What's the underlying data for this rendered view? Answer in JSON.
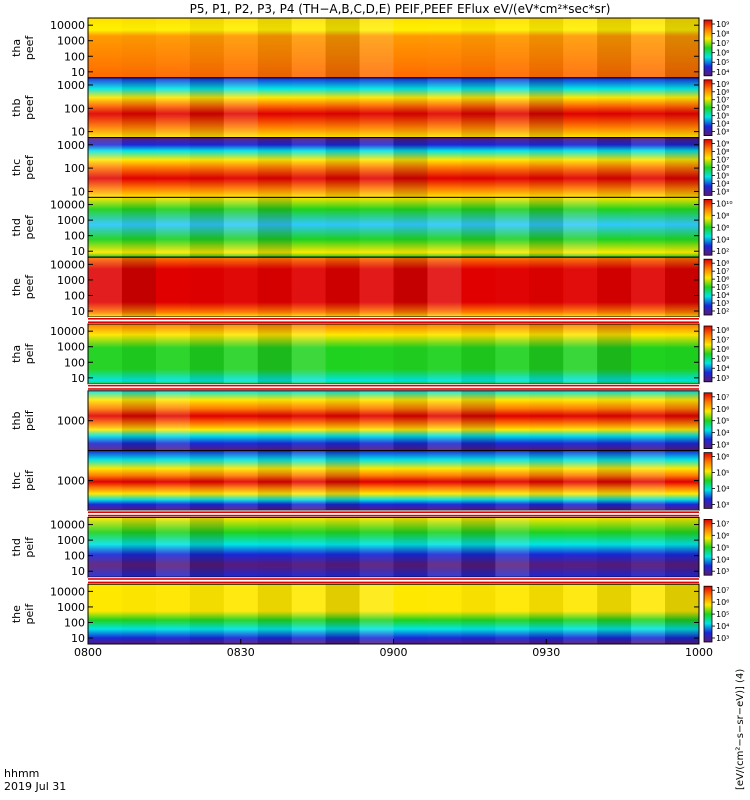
{
  "title": "P5, P1, P2, P3, P4 (TH−A,B,C,D,E) PEIF,PEEF EFlux eV/(eV*cm²*sec*sr)",
  "time_axis": {
    "row_label_1": "hhmm",
    "row_label_2": "2019 Jul 31",
    "ticks": [
      "0800",
      "0830",
      "0900",
      "0930",
      "1000"
    ]
  },
  "colorbar_label": "[eV/(cm²−s−sr−eV)] (4)",
  "colors": {
    "red": "#e00000",
    "orange": "#ff7a00",
    "yellow": "#ffe800",
    "green": "#1fd21f",
    "cyan": "#00e5e5",
    "blue": "#1a28d8",
    "purple": "#5a1a78",
    "black": "#000000"
  },
  "chart_data": [
    {
      "type": "heatmap",
      "probe": "tha",
      "line1": "tha",
      "line2": "peef",
      "yticks": [
        "10000",
        "1000",
        "100",
        "10"
      ],
      "ylog": true,
      "cbar_ticks": [
        "10⁹",
        "10⁸",
        "10⁷",
        "10⁶",
        "10⁵",
        "10⁴"
      ],
      "gap_after": false
    },
    {
      "type": "heatmap",
      "probe": "thb",
      "line1": "thb",
      "line2": "peef",
      "yticks": [
        "1000",
        "100",
        "10"
      ],
      "ylog": true,
      "cbar_ticks": [
        "10⁹",
        "10⁸",
        "10⁷",
        "10⁶",
        "10⁵",
        "10⁴",
        "10³"
      ],
      "gap_after": false
    },
    {
      "type": "heatmap",
      "probe": "thc",
      "line1": "thc",
      "line2": "peef",
      "yticks": [
        "1000",
        "100",
        "10"
      ],
      "ylog": true,
      "cbar_ticks": [
        "10⁹",
        "10⁸",
        "10⁷",
        "10⁶",
        "10⁵",
        "10⁴",
        "10³"
      ],
      "gap_after": false
    },
    {
      "type": "heatmap",
      "probe": "thd",
      "line1": "thd",
      "line2": "peef",
      "yticks": [
        "10000",
        "1000",
        "100",
        "10"
      ],
      "ylog": true,
      "cbar_ticks": [
        "10¹⁰",
        "10⁸",
        "10⁶",
        "10⁴",
        "10²"
      ],
      "gap_after": false
    },
    {
      "type": "heatmap",
      "probe": "the",
      "line1": "the",
      "line2": "peef",
      "yticks": [
        "10000",
        "1000",
        "100",
        "10"
      ],
      "ylog": true,
      "cbar_ticks": [
        "10⁸",
        "10⁷",
        "10⁶",
        "10⁵",
        "10⁴",
        "10³",
        "10²"
      ],
      "gap_after": true
    },
    {
      "type": "heatmap",
      "probe": "tha",
      "line1": "tha",
      "line2": "peif",
      "yticks": [
        "10000",
        "1000",
        "100",
        "10"
      ],
      "ylog": true,
      "cbar_ticks": [
        "10⁸",
        "10⁷",
        "10⁶",
        "10⁵",
        "10⁴",
        "10³"
      ],
      "gap_after": true
    },
    {
      "type": "heatmap",
      "probe": "thb",
      "line1": "thb",
      "line2": "peif",
      "yticks": [
        "1000"
      ],
      "ylog": true,
      "cbar_ticks": [
        "10⁷",
        "10⁶",
        "10⁵",
        "10⁴",
        "10³"
      ],
      "gap_after": false
    },
    {
      "type": "heatmap",
      "probe": "thc",
      "line1": "thc",
      "line2": "peif",
      "yticks": [
        "1000"
      ],
      "ylog": true,
      "cbar_ticks": [
        "10⁶",
        "10⁵",
        "10⁴",
        "10³"
      ],
      "gap_after": true
    },
    {
      "type": "heatmap",
      "probe": "thd",
      "line1": "thd",
      "line2": "peif",
      "yticks": [
        "10000",
        "1000",
        "100",
        "10"
      ],
      "ylog": true,
      "cbar_ticks": [
        "10⁷",
        "10⁶",
        "10⁵",
        "10⁴",
        "10³"
      ],
      "gap_after": true
    },
    {
      "type": "heatmap",
      "probe": "the",
      "line1": "the",
      "line2": "peif",
      "yticks": [
        "10000",
        "1000",
        "100",
        "10"
      ],
      "ylog": true,
      "cbar_ticks": [
        "10⁷",
        "10⁶",
        "10⁵",
        "10⁴",
        "10³"
      ],
      "gap_after": false
    }
  ]
}
